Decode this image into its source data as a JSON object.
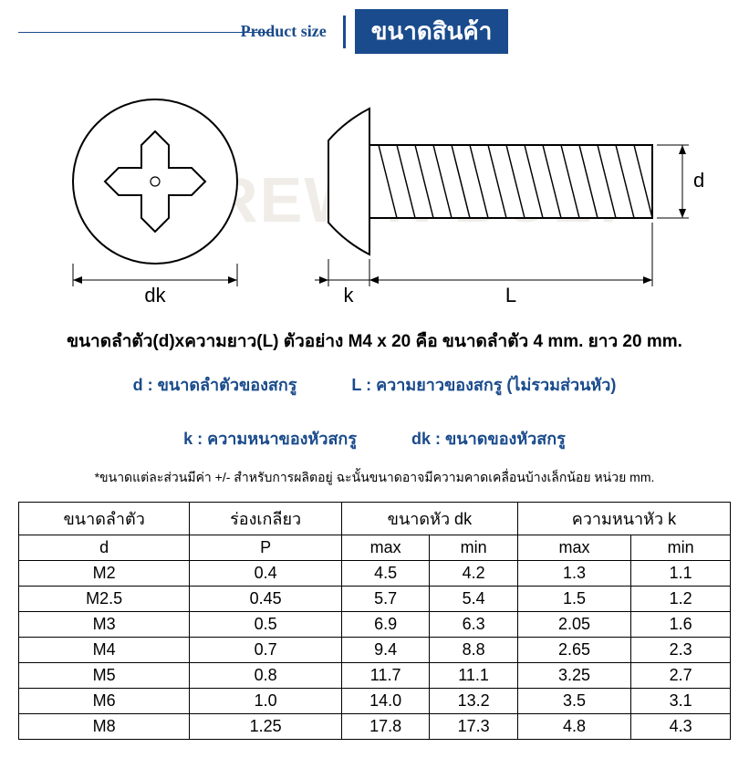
{
  "header": {
    "en": "Product size",
    "th": "ขนาดสินค้า"
  },
  "watermark": "SCREW N BOLT",
  "diagram": {
    "labels": {
      "dk": "dk",
      "k": "k",
      "L": "L",
      "d": "d"
    },
    "colors": {
      "stroke": "#000000",
      "dim_stroke": "#000000",
      "fill": "#ffffff",
      "thread_fill": "#d9d9d9"
    }
  },
  "description": "ขนาดลำตัว(d)xความยาว(L) ตัวอย่าง M4 x 20 คือ ขนาดลำตัว 4 mm. ยาว 20 mm.",
  "legend": {
    "d": "d : ขนาดลำตัวของสกรู",
    "L": "L : ความยาวของสกรู (ไม่รวมส่วนหัว)",
    "k": "k : ความหนาของหัวสกรู",
    "dk": "dk : ขนาดของหัวสกรู"
  },
  "footnote": "*ขนาดแต่ละส่วนมีค่า +/- สำหรับการผลิตอยู่ ฉะนั้นขนาดอาจมีความคาดเคลื่อนบ้างเล็กน้อย หน่วย mm.",
  "table": {
    "header_groups": [
      {
        "label_top": "ขนาดลำตัว",
        "label_bot": "d",
        "span": 1
      },
      {
        "label_top": "ร่องเกลียว",
        "label_bot": "P",
        "span": 1
      },
      {
        "label_top": "ขนาดหัว dk",
        "sub": [
          "max",
          "min"
        ],
        "span": 2
      },
      {
        "label_top": "ความหนาหัว k",
        "sub": [
          "max",
          "min"
        ],
        "span": 2
      }
    ],
    "rows": [
      [
        "M2",
        "0.4",
        "4.5",
        "4.2",
        "1.3",
        "1.1"
      ],
      [
        "M2.5",
        "0.45",
        "5.7",
        "5.4",
        "1.5",
        "1.2"
      ],
      [
        "M3",
        "0.5",
        "6.9",
        "6.3",
        "2.05",
        "1.6"
      ],
      [
        "M4",
        "0.7",
        "9.4",
        "8.8",
        "2.65",
        "2.3"
      ],
      [
        "M5",
        "0.8",
        "11.7",
        "11.1",
        "3.25",
        "2.7"
      ],
      [
        "M6",
        "1.0",
        "14.0",
        "13.2",
        "3.5",
        "3.1"
      ],
      [
        "M8",
        "1.25",
        "17.8",
        "17.3",
        "4.8",
        "4.3"
      ]
    ]
  }
}
